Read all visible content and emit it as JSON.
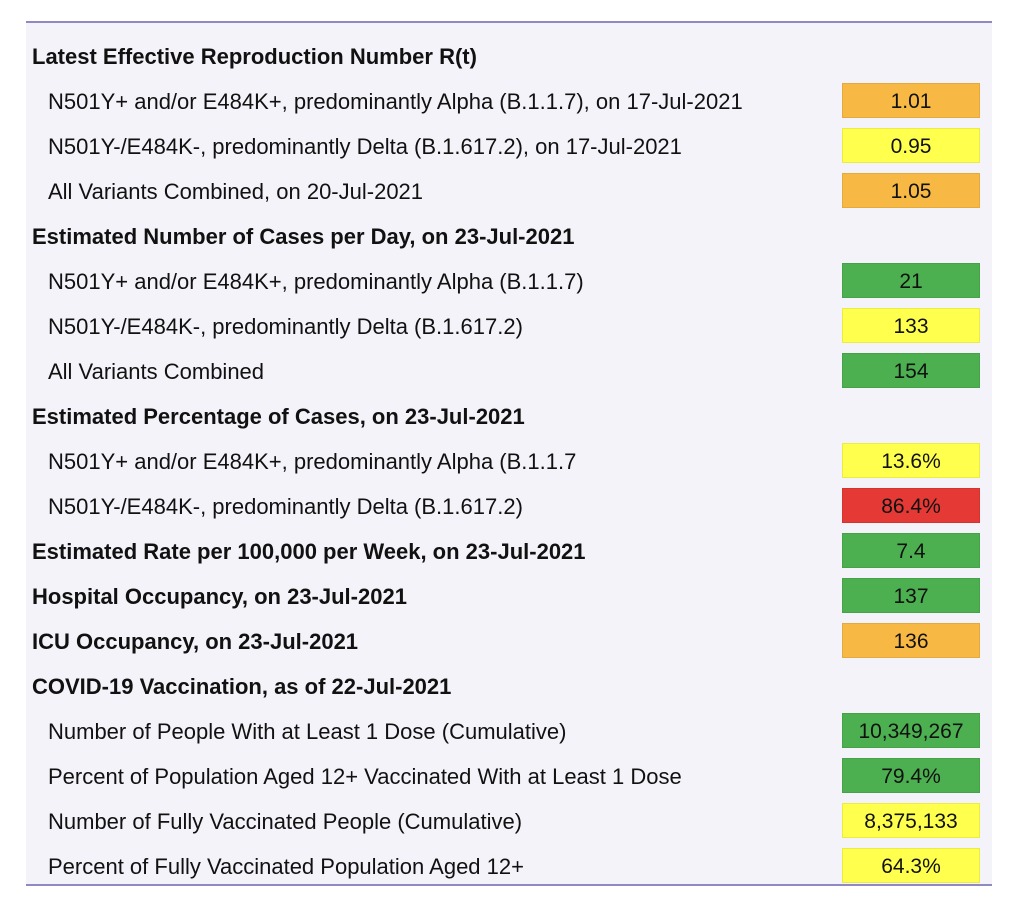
{
  "colors": {
    "green": "#4caf50",
    "yellow": "#ffff4d",
    "orange": "#f7b943",
    "red": "#e53935",
    "border": "#8f8ac4",
    "panel_bg": "#f4f3f9"
  },
  "rt": {
    "heading": "Latest Effective Reproduction Number R(t)",
    "alpha_label": "N501Y+ and/or E484K+, predominantly Alpha (B.1.1.7), on 17-Jul-2021",
    "alpha_value": "1.01",
    "alpha_color": "#f7b943",
    "delta_label": "N501Y-/E484K-, predominantly Delta (B.1.617.2), on 17-Jul-2021",
    "delta_value": "0.95",
    "delta_color": "#ffff4d",
    "all_label": "All Variants Combined, on 20-Jul-2021",
    "all_value": "1.05",
    "all_color": "#f7b943"
  },
  "cases": {
    "heading": "Estimated Number of Cases per Day, on 23-Jul-2021",
    "alpha_label": "N501Y+ and/or E484K+, predominantly Alpha (B.1.1.7)",
    "alpha_value": "21",
    "alpha_color": "#4caf50",
    "delta_label": "N501Y-/E484K-, predominantly Delta (B.1.617.2)",
    "delta_value": "133",
    "delta_color": "#ffff4d",
    "all_label": "All Variants Combined",
    "all_value": "154",
    "all_color": "#4caf50"
  },
  "percentage": {
    "heading": "Estimated Percentage of Cases, on 23-Jul-2021",
    "alpha_label": "N501Y+ and/or E484K+, predominantly Alpha (B.1.1.7",
    "alpha_value": "13.6%",
    "alpha_color": "#ffff4d",
    "delta_label": "N501Y-/E484K-, predominantly Delta (B.1.617.2)",
    "delta_value": "86.4%",
    "delta_color": "#e53935"
  },
  "rate": {
    "heading": "Estimated Rate per 100,000 per Week, on 23-Jul-2021",
    "value": "7.4",
    "color": "#4caf50"
  },
  "hospital": {
    "heading": "Hospital Occupancy, on 23-Jul-2021",
    "value": "137",
    "color": "#4caf50"
  },
  "icu": {
    "heading": "ICU Occupancy, on 23-Jul-2021",
    "value": "136",
    "color": "#f7b943"
  },
  "vaccination": {
    "heading": "COVID-19 Vaccination, as of 22-Jul-2021",
    "dose1_label": "Number of People With at Least 1 Dose (Cumulative)",
    "dose1_value": "10,349,267",
    "dose1_color": "#4caf50",
    "pct1_label": "Percent of Population Aged 12+ Vaccinated With at Least 1 Dose",
    "pct1_value": "79.4%",
    "pct1_color": "#4caf50",
    "full_label": "Number of Fully Vaccinated People (Cumulative)",
    "full_value": "8,375,133",
    "full_color": "#ffff4d",
    "pctfull_label": "Percent of Fully Vaccinated Population Aged 12+",
    "pctfull_value": "64.3%",
    "pctfull_color": "#ffff4d"
  }
}
